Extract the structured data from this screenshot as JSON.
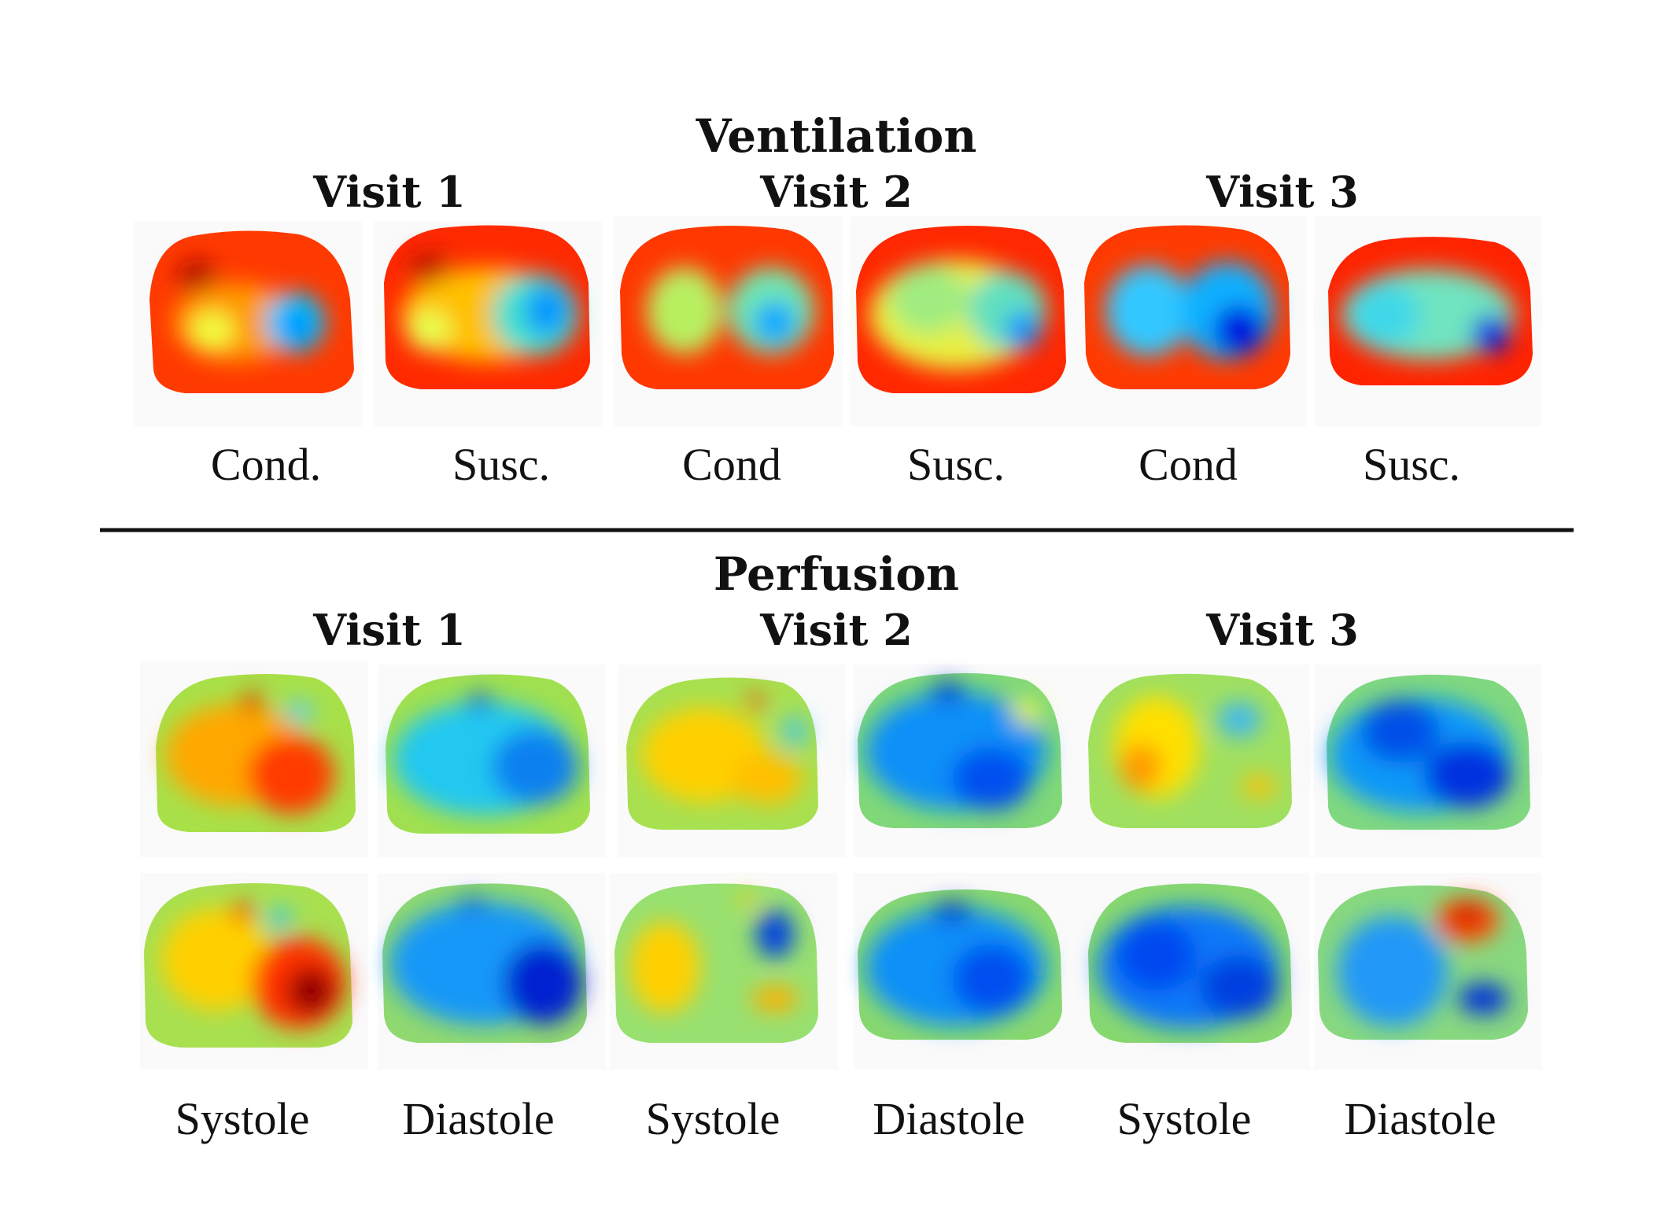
{
  "ventilation": {
    "title": "Ventilation",
    "visits": [
      "Visit 1",
      "Visit 2",
      "Visit 3"
    ],
    "captions": [
      "Cond.",
      "Susc.",
      "Cond",
      "Susc.",
      "Cond",
      "Susc."
    ]
  },
  "perfusion": {
    "title": "Perfusion",
    "visits": [
      "Visit 1",
      "Visit 2",
      "Visit 3"
    ],
    "captions": [
      "Systole",
      "Diastole",
      "Systole",
      "Diastole",
      "Systole",
      "Diastole"
    ]
  },
  "colors": {
    "background": "#ffffff",
    "text": "#111111",
    "divider": "#111111",
    "colormap": "jet",
    "jet_stops": [
      "#00008f",
      "#0000ff",
      "#00ffff",
      "#ffff00",
      "#ff0000",
      "#800000"
    ]
  }
}
